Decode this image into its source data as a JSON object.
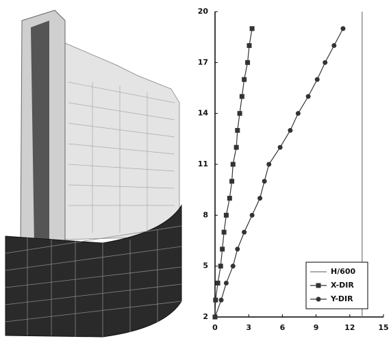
{
  "chart_data": {
    "type": "line",
    "xlim": [
      0,
      15
    ],
    "xticks": [
      0,
      3,
      6,
      9,
      12,
      15
    ],
    "ylim": [
      2,
      20
    ],
    "yticks": [
      2,
      5,
      8,
      11,
      14,
      17,
      20
    ],
    "legend": "lower right",
    "series": [
      {
        "name": "H/600",
        "color": "#777777",
        "marker": "none",
        "x": [
          13.1,
          13.1
        ],
        "values": [
          2,
          20
        ]
      },
      {
        "name": "X-DIR",
        "color": "#333333",
        "marker": "square",
        "x": [
          0,
          0.05,
          0.25,
          0.5,
          0.65,
          0.8,
          1.0,
          1.3,
          1.5,
          1.6,
          1.9,
          2.0,
          2.2,
          2.4,
          2.6,
          2.9,
          3.05,
          3.3
        ],
        "values": [
          2,
          3,
          4,
          5,
          6,
          7,
          8,
          9,
          10,
          11,
          12,
          13,
          14,
          15,
          16,
          17,
          18,
          19
        ]
      },
      {
        "name": "Y-DIR",
        "color": "#333333",
        "marker": "circle",
        "x": [
          0,
          0.55,
          1.0,
          1.6,
          2.0,
          2.6,
          3.3,
          4.0,
          4.4,
          4.8,
          5.8,
          6.7,
          7.4,
          8.3,
          9.1,
          9.8,
          10.6,
          11.4
        ],
        "values": [
          2,
          3,
          4,
          5,
          6,
          7,
          8,
          9,
          10,
          11,
          12,
          13,
          14,
          15,
          16,
          17,
          18,
          19
        ]
      }
    ]
  }
}
